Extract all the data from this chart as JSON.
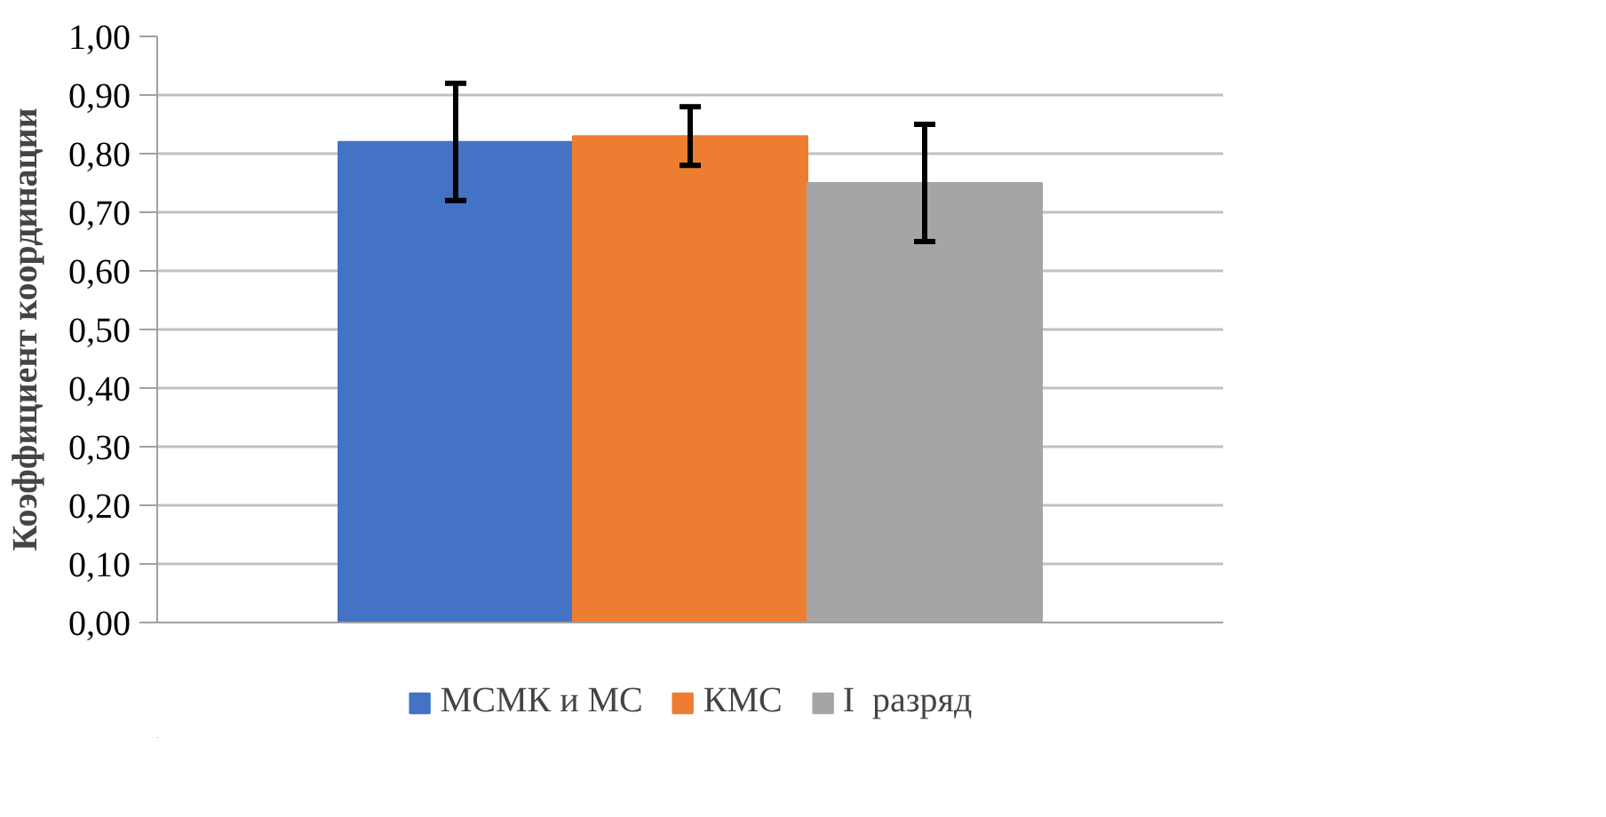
{
  "chart_data": {
    "type": "bar",
    "ylabel": "Коэффициент координации",
    "categories": [
      null
    ],
    "series": [
      {
        "name": "МСМК и МС",
        "color": "#4472c4",
        "values": [
          0.82
        ],
        "errors": [
          0.1
        ]
      },
      {
        "name": "КМС",
        "color": "#ed7d31",
        "values": [
          0.83
        ],
        "errors": [
          0.05
        ]
      },
      {
        "name": "I  разряд",
        "color": "#a5a5a5",
        "values": [
          0.75
        ],
        "errors": [
          0.1
        ]
      }
    ],
    "ylim": [
      0,
      1
    ],
    "yticks": [
      {
        "value": 0,
        "label": "0,00"
      },
      {
        "value": 0.1,
        "label": "0,10"
      },
      {
        "value": 0.2,
        "label": "0,20"
      },
      {
        "value": 0.3,
        "label": "0,30"
      },
      {
        "value": 0.4,
        "label": "0,40"
      },
      {
        "value": 0.5,
        "label": "0,50"
      },
      {
        "value": 0.6,
        "label": "0,60"
      },
      {
        "value": 0.7,
        "label": "0,70"
      },
      {
        "value": 0.8,
        "label": "0,80"
      },
      {
        "value": 0.9,
        "label": "0,90"
      },
      {
        "value": 1,
        "label": "1,00"
      }
    ],
    "grid": "y",
    "legend": "bottom"
  }
}
